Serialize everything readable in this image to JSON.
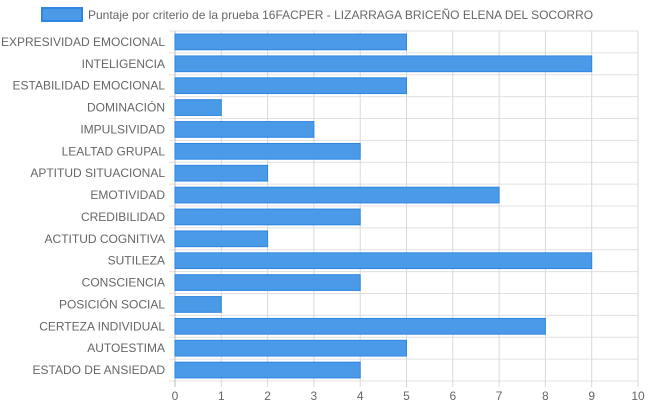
{
  "chart_data": {
    "type": "bar",
    "orientation": "horizontal",
    "categories": [
      "EXPRESIVIDAD EMOCIONAL",
      "INTELIGENCIA",
      "ESTABILIDAD EMOCIONAL",
      "DOMINACIÓN",
      "IMPULSIVIDAD",
      "LEALTAD GRUPAL",
      "APTITUD SITUACIONAL",
      "EMOTIVIDAD",
      "CREDIBILIDAD",
      "ACTITUD COGNITIVA",
      "SUTILEZA",
      "CONSCIENCIA",
      "POSICIÓN SOCIAL",
      "CERTEZA INDIVIDUAL",
      "AUTOESTIMA",
      "ESTADO DE ANSIEDAD"
    ],
    "series": [
      {
        "name": "Puntaje por criterio de la prueba 16FACPER - LIZARRAGA BRICEÑO ELENA DEL SOCORRO",
        "values": [
          5,
          9,
          5,
          1,
          3,
          4,
          2,
          7,
          4,
          2,
          9,
          4,
          1,
          8,
          5,
          4
        ],
        "color": "#4a9ae8",
        "border_color": "#2f86e0"
      }
    ],
    "xlim": [
      0,
      10
    ],
    "x_ticks": [
      "0",
      "1",
      "2",
      "3",
      "4",
      "5",
      "6",
      "7",
      "8",
      "9",
      "10"
    ],
    "grid": true,
    "legend_position": "top"
  }
}
